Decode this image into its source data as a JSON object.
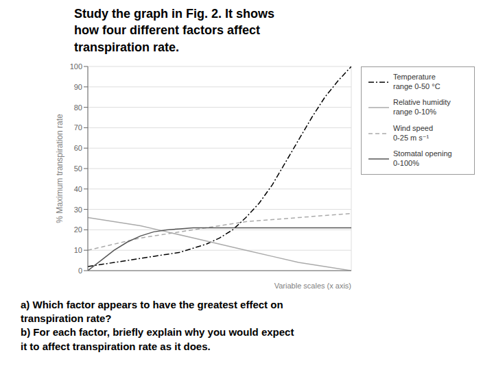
{
  "chart_data": {
    "type": "line",
    "title": "Study the graph in Fig. 2.   It shows\nhow four different factors affect\ntranspiration rate.",
    "annotations": [
      "a) Which factor appears to have the greatest effect on\ntranspiration rate?",
      "b) For each factor, briefly explain why you would expect\nit to affect transpiration rate as it does."
    ],
    "xlabel": "Variable scales (x axis)",
    "ylabel": "% Maximum transpiration rate",
    "xlim": [
      0,
      1
    ],
    "ylim": [
      0,
      100
    ],
    "xticks": [
      0,
      0.1,
      0.2,
      0.3,
      0.4,
      0.5,
      0.6,
      0.7,
      0.8,
      0.9,
      1.0
    ],
    "yticks": [
      0,
      10,
      20,
      30,
      40,
      50,
      60,
      70,
      80,
      90,
      100
    ],
    "grid": true,
    "legend": "right",
    "tick_labels": "y",
    "series": [
      {
        "name": "Temperature\nrange 0-50 °C",
        "color": "#000000",
        "line_style": "dashdot",
        "x": [
          0,
          0.05,
          0.1,
          0.15,
          0.2,
          0.25,
          0.3,
          0.35,
          0.4,
          0.45,
          0.5,
          0.55,
          0.6,
          0.65,
          0.7,
          0.75,
          0.8,
          0.85,
          0.9,
          0.95,
          1.0
        ],
        "values": [
          2,
          3,
          4,
          5,
          6,
          7,
          8,
          9,
          11,
          13,
          16,
          20,
          26,
          33,
          42,
          53,
          64,
          75,
          85,
          93,
          100
        ]
      },
      {
        "name": "Relative humidity\nrange 0-10%",
        "color": "#aaaaaa",
        "line_style": "solid",
        "x": [
          0,
          0.1,
          0.2,
          0.3,
          0.4,
          0.5,
          0.6,
          0.7,
          0.8,
          0.9,
          1.0
        ],
        "values": [
          26,
          24,
          22,
          19,
          16,
          13,
          10,
          7,
          4,
          2,
          0
        ]
      },
      {
        "name": "Wind speed\n0-25 m s⁻¹",
        "color": "#aaaaaa",
        "line_style": "dashed",
        "x": [
          0,
          0.1,
          0.2,
          0.3,
          0.4,
          0.5,
          0.6,
          0.7,
          0.8,
          0.9,
          1.0
        ],
        "values": [
          10,
          13,
          16,
          18,
          20,
          22,
          24,
          25,
          26,
          27,
          28
        ]
      },
      {
        "name": "Stomatal opening\n0-100%",
        "color": "#555555",
        "line_style": "solid",
        "x": [
          0,
          0.05,
          0.1,
          0.15,
          0.2,
          0.25,
          0.3,
          0.35,
          0.4,
          0.5,
          0.6,
          0.7,
          0.8,
          0.9,
          1.0
        ],
        "values": [
          0,
          5,
          10,
          14,
          17,
          19,
          20,
          20.5,
          21,
          21,
          21,
          21,
          21,
          21,
          21
        ]
      }
    ]
  }
}
